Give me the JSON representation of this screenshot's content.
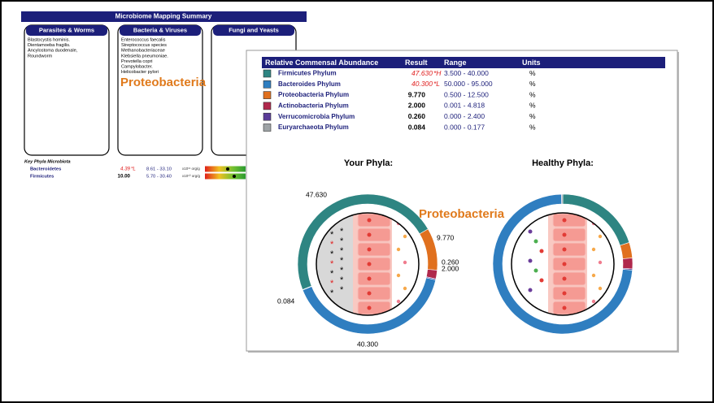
{
  "summary": {
    "title": "Microbiome Mapping Summary",
    "columns": [
      {
        "heading": "Parasites & Worms",
        "items": [
          "Blastocystis hominis.",
          "Dientamoeba fragilis.",
          "Ancylostoma duodenale,",
          "Roundworm"
        ]
      },
      {
        "heading": "Bacteria & Viruses",
        "items": [
          "Enterococcus faecalis",
          "Streptococcus species",
          "Methanobacteriaceae",
          "Klebsiella pneumoniae.",
          "Prevotella copri",
          "Campylobacter.",
          "Helicobacter pylori"
        ]
      },
      {
        "heading": "Fungi and Yeasts",
        "items": []
      }
    ],
    "annotation": "Proteobacteria",
    "key_phyla": {
      "title": "Key Phyla Microbiota",
      "rows": [
        {
          "name": "Bacteroidetes",
          "result": "4.39",
          "flag": "*L",
          "range": "8.61 - 33.10",
          "unit": "x10¹¹ org/g"
        },
        {
          "name": "Firmicutes",
          "result": "10.00",
          "range": "5.70 - 30.40",
          "unit": "x10¹⁰ org/g"
        }
      ]
    }
  },
  "abundance": {
    "headers": [
      "Relative Commensal Abundance",
      "Result",
      "Range",
      "Units"
    ],
    "rows": [
      {
        "name": "Firmicutes Phylum",
        "color": "#2e8582",
        "result": {
          "value": 47.63,
          "label": "47.630"
        },
        "flag": "*H",
        "range": "3.500 - 40.000",
        "unit": "%"
      },
      {
        "name": "Bacteroides Phylum",
        "color": "#2f7ec0",
        "result": {
          "value": 40.3,
          "label": "40.300"
        },
        "flag": "*L",
        "range": "50.000 - 95.000",
        "unit": "%"
      },
      {
        "name": "Proteobacteria Phylum",
        "color": "#e0701e",
        "result": {
          "value": 9.77,
          "label": "9.770"
        },
        "range": "0.500 - 12.500",
        "unit": "%"
      },
      {
        "name": "Actinobacteria Phylum",
        "color": "#b0284c",
        "result": {
          "value": 2,
          "label": "2.000"
        },
        "range": "0.001 - 4.818",
        "unit": "%"
      },
      {
        "name": "Verrucomicrobia Phylum",
        "color": "#5a3c98",
        "result": {
          "value": 0.26,
          "label": "0.260"
        },
        "range": "0.000 - 2.400",
        "unit": "%"
      },
      {
        "name": "Euryarchaeota Phylum",
        "color": "#9ea3a6",
        "result": 0.084,
        "range": "0.000 - 0.177",
        "unit": "%"
      }
    ],
    "your_title": "Your Phyla:",
    "healthy_title": "Healthy Phyla:",
    "annotation": "Proteobacteria"
  }
}
